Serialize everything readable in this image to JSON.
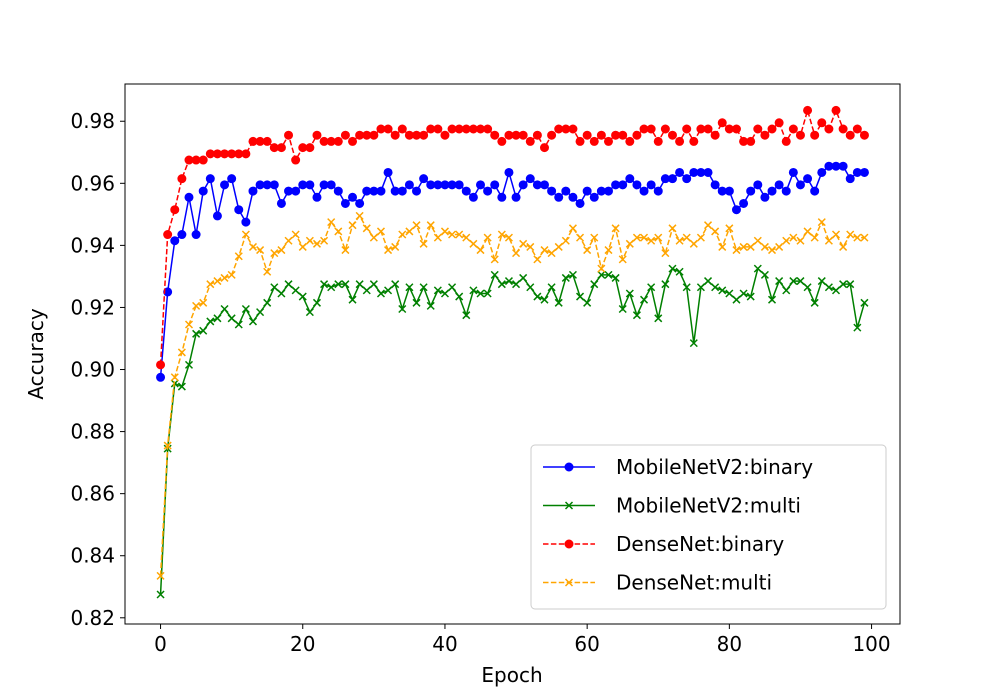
{
  "chart_data": {
    "type": "line",
    "xlabel": "Epoch",
    "ylabel": "Accuracy",
    "xlim": [
      -5,
      104
    ],
    "ylim": [
      0.818,
      0.992
    ],
    "xticks": [
      0,
      20,
      40,
      60,
      80,
      100
    ],
    "yticks": [
      0.82,
      0.84,
      0.86,
      0.88,
      0.9,
      0.92,
      0.94,
      0.96,
      0.98
    ],
    "ytick_labels": [
      "0.82",
      "0.84",
      "0.86",
      "0.88",
      "0.90",
      "0.92",
      "0.94",
      "0.96",
      "0.98"
    ],
    "xtick_labels": [
      "0",
      "20",
      "40",
      "60",
      "80",
      "100"
    ],
    "legend_position": "lower-right",
    "series": [
      {
        "name": "MobileNetV2:binary",
        "color": "#0000ff",
        "linestyle": "solid",
        "marker": "circle",
        "values": [
          0.8975,
          0.925,
          0.9415,
          0.9435,
          0.9555,
          0.9435,
          0.9575,
          0.9615,
          0.9495,
          0.9595,
          0.9615,
          0.9515,
          0.9475,
          0.9575,
          0.9595,
          0.9595,
          0.9595,
          0.9535,
          0.9575,
          0.9575,
          0.9595,
          0.9595,
          0.9555,
          0.9595,
          0.9595,
          0.9575,
          0.9535,
          0.9555,
          0.9535,
          0.9575,
          0.9575,
          0.9575,
          0.9635,
          0.9575,
          0.9575,
          0.9595,
          0.9575,
          0.9615,
          0.9595,
          0.9595,
          0.9595,
          0.9595,
          0.9595,
          0.9575,
          0.9555,
          0.9595,
          0.9575,
          0.9595,
          0.9555,
          0.9635,
          0.9555,
          0.9595,
          0.9615,
          0.9595,
          0.9595,
          0.9575,
          0.9555,
          0.9575,
          0.9555,
          0.9535,
          0.9575,
          0.9555,
          0.9575,
          0.9575,
          0.9595,
          0.9595,
          0.9615,
          0.9595,
          0.9575,
          0.9595,
          0.9575,
          0.9615,
          0.9615,
          0.9635,
          0.9615,
          0.9635,
          0.9635,
          0.9635,
          0.9595,
          0.9575,
          0.9575,
          0.9515,
          0.9535,
          0.9575,
          0.9595,
          0.9555,
          0.9575,
          0.9595,
          0.9575,
          0.9635,
          0.9595,
          0.9615,
          0.9575,
          0.9635,
          0.9655,
          0.9655,
          0.9655,
          0.9615,
          0.9635,
          0.9635
        ]
      },
      {
        "name": "MobileNetV2:multi",
        "color": "#008000",
        "linestyle": "solid",
        "marker": "x",
        "values": [
          0.8275,
          0.8745,
          0.8955,
          0.8945,
          0.9015,
          0.9115,
          0.9125,
          0.9155,
          0.9165,
          0.9195,
          0.9165,
          0.9145,
          0.9195,
          0.9155,
          0.9185,
          0.9215,
          0.9265,
          0.9245,
          0.9275,
          0.9255,
          0.9235,
          0.9185,
          0.9215,
          0.9275,
          0.9265,
          0.9275,
          0.9275,
          0.9225,
          0.9275,
          0.9255,
          0.9275,
          0.9245,
          0.9255,
          0.9275,
          0.9195,
          0.9265,
          0.9215,
          0.9265,
          0.9205,
          0.9255,
          0.9245,
          0.9265,
          0.9235,
          0.9175,
          0.9255,
          0.9245,
          0.9245,
          0.9305,
          0.9275,
          0.9285,
          0.9275,
          0.9295,
          0.9265,
          0.9235,
          0.9225,
          0.9265,
          0.9215,
          0.9295,
          0.9305,
          0.9235,
          0.9215,
          0.9275,
          0.9305,
          0.9305,
          0.9295,
          0.9195,
          0.9245,
          0.9175,
          0.9225,
          0.9265,
          0.9165,
          0.9275,
          0.9325,
          0.9315,
          0.9265,
          0.9085,
          0.9265,
          0.9285,
          0.9265,
          0.9255,
          0.9245,
          0.9225,
          0.9245,
          0.9235,
          0.9325,
          0.9305,
          0.9225,
          0.9285,
          0.9255,
          0.9285,
          0.9285,
          0.9265,
          0.9215,
          0.9285,
          0.9265,
          0.9255,
          0.9275,
          0.9275,
          0.9135,
          0.9215
        ]
      },
      {
        "name": "DenseNet:binary",
        "color": "#ff0000",
        "linestyle": "dashed",
        "marker": "circle",
        "values": [
          0.9015,
          0.9435,
          0.9515,
          0.9615,
          0.9675,
          0.9675,
          0.9675,
          0.9695,
          0.9695,
          0.9695,
          0.9695,
          0.9695,
          0.9695,
          0.9735,
          0.9735,
          0.9735,
          0.9715,
          0.9715,
          0.9755,
          0.9675,
          0.9715,
          0.9715,
          0.9755,
          0.9735,
          0.9735,
          0.9735,
          0.9755,
          0.9735,
          0.9755,
          0.9755,
          0.9755,
          0.9775,
          0.9775,
          0.9755,
          0.9775,
          0.9755,
          0.9755,
          0.9755,
          0.9775,
          0.9775,
          0.9755,
          0.9775,
          0.9775,
          0.9775,
          0.9775,
          0.9775,
          0.9775,
          0.9755,
          0.9735,
          0.9755,
          0.9755,
          0.9755,
          0.9735,
          0.9755,
          0.9715,
          0.9755,
          0.9775,
          0.9775,
          0.9775,
          0.9735,
          0.9755,
          0.9735,
          0.9755,
          0.9735,
          0.9755,
          0.9755,
          0.9735,
          0.9755,
          0.9775,
          0.9775,
          0.9735,
          0.9775,
          0.9755,
          0.9735,
          0.9775,
          0.9735,
          0.9775,
          0.9775,
          0.9755,
          0.9795,
          0.9775,
          0.9775,
          0.9735,
          0.9735,
          0.9775,
          0.9755,
          0.9775,
          0.9795,
          0.9735,
          0.9775,
          0.9755,
          0.9835,
          0.9755,
          0.9795,
          0.9775,
          0.9835,
          0.9775,
          0.9755,
          0.9775,
          0.9755
        ]
      },
      {
        "name": "DenseNet:multi",
        "color": "#ffa500",
        "linestyle": "dashed",
        "marker": "x",
        "values": [
          0.8335,
          0.8755,
          0.8975,
          0.9055,
          0.9145,
          0.9205,
          0.9215,
          0.9275,
          0.9285,
          0.9295,
          0.9305,
          0.9365,
          0.9435,
          0.9395,
          0.9385,
          0.9315,
          0.9375,
          0.9385,
          0.9415,
          0.9435,
          0.9395,
          0.9415,
          0.9405,
          0.9415,
          0.9475,
          0.9445,
          0.9385,
          0.9465,
          0.9495,
          0.9455,
          0.9425,
          0.9445,
          0.9385,
          0.9395,
          0.9435,
          0.9445,
          0.9465,
          0.9405,
          0.9465,
          0.9425,
          0.9445,
          0.9435,
          0.9435,
          0.9425,
          0.9405,
          0.9385,
          0.9425,
          0.9355,
          0.9435,
          0.9425,
          0.9375,
          0.9405,
          0.9395,
          0.9355,
          0.9385,
          0.9375,
          0.9395,
          0.9415,
          0.9455,
          0.9425,
          0.9385,
          0.9425,
          0.9325,
          0.9385,
          0.9455,
          0.9355,
          0.9405,
          0.9425,
          0.9425,
          0.9415,
          0.9425,
          0.9375,
          0.9455,
          0.9415,
          0.9425,
          0.9405,
          0.9425,
          0.9465,
          0.9445,
          0.9395,
          0.9455,
          0.9385,
          0.9395,
          0.9395,
          0.9415,
          0.9395,
          0.9385,
          0.9395,
          0.9415,
          0.9425,
          0.9415,
          0.9445,
          0.9425,
          0.9475,
          0.9415,
          0.9435,
          0.9395,
          0.9435,
          0.9425,
          0.9425
        ]
      }
    ]
  }
}
